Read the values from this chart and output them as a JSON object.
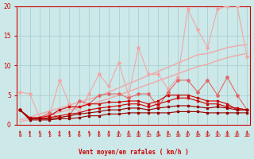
{
  "x": [
    0,
    1,
    2,
    3,
    4,
    5,
    6,
    7,
    8,
    9,
    10,
    11,
    12,
    13,
    14,
    15,
    16,
    17,
    18,
    19,
    20,
    21,
    22,
    23
  ],
  "line_light_main": [
    5.5,
    5.2,
    1.2,
    1.5,
    7.5,
    3.5,
    2.2,
    5.2,
    8.5,
    6.5,
    10.5,
    5.0,
    13.0,
    8.5,
    8.5,
    6.0,
    8.0,
    19.5,
    16.0,
    13.0,
    19.5,
    20.0,
    20.0,
    11.5
  ],
  "line_trend_upper": [
    0.8,
    1.3,
    1.8,
    2.3,
    2.8,
    3.3,
    3.8,
    4.3,
    4.8,
    5.5,
    6.2,
    6.9,
    7.6,
    8.3,
    9.0,
    9.7,
    10.4,
    11.1,
    11.8,
    12.0,
    12.5,
    13.0,
    13.3,
    13.5
  ],
  "line_trend_lower": [
    0.5,
    0.9,
    1.3,
    1.7,
    2.1,
    2.5,
    2.9,
    3.4,
    3.9,
    4.4,
    5.0,
    5.6,
    6.2,
    6.8,
    7.4,
    8.0,
    8.6,
    9.2,
    9.8,
    10.2,
    10.8,
    11.3,
    11.7,
    12.0
  ],
  "line_medium": [
    2.5,
    1.0,
    1.2,
    2.0,
    1.2,
    1.5,
    4.0,
    3.5,
    5.0,
    5.2,
    5.2,
    4.5,
    5.2,
    5.2,
    3.0,
    5.5,
    7.5,
    7.5,
    5.5,
    7.5,
    5.0,
    8.0,
    5.0,
    2.5
  ],
  "line_red1": [
    2.5,
    1.2,
    1.2,
    1.5,
    2.5,
    3.0,
    3.0,
    3.5,
    3.5,
    3.8,
    3.8,
    4.0,
    4.0,
    3.5,
    4.0,
    5.0,
    5.0,
    5.0,
    4.5,
    4.0,
    4.0,
    3.5,
    2.5,
    2.5
  ],
  "line_red2": [
    2.5,
    1.0,
    1.0,
    1.2,
    1.5,
    1.8,
    2.0,
    2.5,
    2.8,
    3.0,
    3.2,
    3.5,
    3.5,
    3.0,
    3.5,
    4.0,
    4.5,
    4.5,
    4.0,
    3.5,
    3.5,
    3.0,
    2.8,
    2.5
  ],
  "line_dark1": [
    2.5,
    1.0,
    1.0,
    1.0,
    1.2,
    1.5,
    1.8,
    2.0,
    2.2,
    2.5,
    2.5,
    2.8,
    2.8,
    2.5,
    2.8,
    3.0,
    3.2,
    3.2,
    3.0,
    2.8,
    3.0,
    2.8,
    2.5,
    2.5
  ],
  "line_dark2": [
    2.5,
    0.8,
    0.8,
    0.8,
    1.0,
    1.0,
    1.2,
    1.5,
    1.5,
    1.8,
    1.8,
    2.0,
    2.0,
    2.0,
    2.0,
    2.0,
    2.2,
    2.2,
    2.2,
    2.0,
    2.0,
    2.0,
    2.0,
    2.0
  ],
  "ylim": [
    0,
    20
  ],
  "xlim": [
    -0.3,
    23.3
  ],
  "yticks": [
    0,
    5,
    10,
    15,
    20
  ],
  "xlabel": "Vent moyen/en rafales ( km/h )",
  "bg_color": "#cce8e8",
  "grid_color": "#aad0d0",
  "color_light": "#f0a8a8",
  "color_medium": "#e06868",
  "color_red": "#cc0000",
  "color_dark": "#990000"
}
